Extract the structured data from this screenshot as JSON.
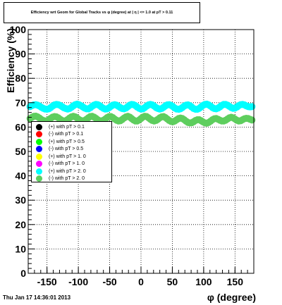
{
  "chart_data": {
    "type": "scatter",
    "title": "Efficiency wrt Geom for Global Tracks vs φ (degree) at | η | <= 1.0 at pT > 0.11",
    "xlabel": "φ (degree)",
    "ylabel": "Efficiency (%)",
    "xlim": [
      -180,
      180
    ],
    "ylim": [
      0,
      100
    ],
    "x_ticks": [
      -150,
      -100,
      -50,
      0,
      50,
      100,
      150
    ],
    "x_tick_labels": [
      "-150",
      "-100",
      "-50",
      "0",
      "50",
      "100",
      "150"
    ],
    "y_ticks": [
      0,
      10,
      20,
      30,
      40,
      50,
      60,
      70,
      80,
      90,
      100
    ],
    "y_tick_labels": [
      "0",
      "10",
      "20",
      "30",
      "40",
      "50",
      "60",
      "70",
      "80",
      "90",
      "100"
    ],
    "grid": true,
    "legend_position": "left-middle",
    "series": [
      {
        "name": "(+) with pT > 0.1",
        "color": "#000000",
        "values": []
      },
      {
        "name": "(-) with pT > 0.1",
        "color": "#ff0000",
        "values": []
      },
      {
        "name": "(+) with pT > 0.5",
        "color": "#00ff00",
        "values": []
      },
      {
        "name": "(-) with pT > 0.5",
        "color": "#0000ff",
        "values": []
      },
      {
        "name": "(+) with pT > 1. 0",
        "color": "#ffff00",
        "values": []
      },
      {
        "name": "(-) with pT > 1. 0",
        "color": "#ff00ff",
        "values": []
      },
      {
        "name": "(+) with pT > 2. 0",
        "color": "#00ffff",
        "x": [
          -177,
          -174,
          -171,
          -168,
          -165,
          -162,
          -159,
          -156,
          -153,
          -150,
          -147,
          -144,
          -141,
          -138,
          -135,
          -132,
          -129,
          -126,
          -123,
          -120,
          -117,
          -114,
          -111,
          -108,
          -105,
          -102,
          -99,
          -96,
          -93,
          -90,
          -87,
          -84,
          -81,
          -78,
          -75,
          -72,
          -69,
          -66,
          -63,
          -60,
          -57,
          -54,
          -51,
          -48,
          -45,
          -42,
          -39,
          -36,
          -33,
          -30,
          -27,
          -24,
          -21,
          -18,
          -15,
          -12,
          -9,
          -6,
          -3,
          0,
          3,
          6,
          9,
          12,
          15,
          18,
          21,
          24,
          27,
          30,
          33,
          36,
          39,
          42,
          45,
          48,
          51,
          54,
          57,
          60,
          63,
          66,
          69,
          72,
          75,
          78,
          81,
          84,
          87,
          90,
          93,
          96,
          99,
          102,
          105,
          108,
          111,
          114,
          117,
          120,
          123,
          126,
          129,
          132,
          135,
          138,
          141,
          144,
          147,
          150,
          153,
          156,
          159,
          162,
          165,
          168,
          171,
          174,
          177
        ],
        "values": [
          68.4,
          68.8,
          69.1,
          69.2,
          69.0,
          68.6,
          68.1,
          67.7,
          67.4,
          67.3,
          67.5,
          68.0,
          68.6,
          69.1,
          69.3,
          69.2,
          68.9,
          68.4,
          67.9,
          67.6,
          67.4,
          67.6,
          68.1,
          68.7,
          69.2,
          69.4,
          69.2,
          68.8,
          68.3,
          67.8,
          67.5,
          67.5,
          67.9,
          68.5,
          69.0,
          69.3,
          69.2,
          68.8,
          68.2,
          67.7,
          67.4,
          67.5,
          67.9,
          68.5,
          69.0,
          69.2,
          69.0,
          68.5,
          68.0,
          67.6,
          67.5,
          67.8,
          68.4,
          69.0,
          69.3,
          69.2,
          68.8,
          68.2,
          67.7,
          67.4,
          67.5,
          68.0,
          68.6,
          69.1,
          69.3,
          69.1,
          68.6,
          68.0,
          67.6,
          67.4,
          67.6,
          68.1,
          68.7,
          69.1,
          69.2,
          68.9,
          68.4,
          67.8,
          67.4,
          67.3,
          67.5,
          68.0,
          68.6,
          69.0,
          69.1,
          68.8,
          68.2,
          67.6,
          67.3,
          67.3,
          67.7,
          68.3,
          68.9,
          69.3,
          69.4,
          69.1,
          68.6,
          68.0,
          67.6,
          67.5,
          67.8,
          68.3,
          68.9,
          69.3,
          69.3,
          69.0,
          68.5,
          68.0,
          67.7,
          67.8,
          68.2,
          68.8,
          69.2,
          69.3,
          69.1,
          68.7,
          68.4,
          68.3,
          68.4
        ]
      },
      {
        "name": "(-) with pT > 2. 0",
        "color": "#5ece5e",
        "x": [
          -177,
          -174,
          -171,
          -168,
          -165,
          -162,
          -159,
          -156,
          -153,
          -150,
          -147,
          -144,
          -141,
          -138,
          -135,
          -132,
          -129,
          -126,
          -123,
          -120,
          -117,
          -114,
          -111,
          -108,
          -105,
          -102,
          -99,
          -96,
          -93,
          -90,
          -87,
          -84,
          -81,
          -78,
          -75,
          -72,
          -69,
          -66,
          -63,
          -60,
          -57,
          -54,
          -51,
          -48,
          -45,
          -42,
          -39,
          -36,
          -33,
          -30,
          -27,
          -24,
          -21,
          -18,
          -15,
          -12,
          -9,
          -6,
          -3,
          0,
          3,
          6,
          9,
          12,
          15,
          18,
          21,
          24,
          27,
          30,
          33,
          36,
          39,
          42,
          45,
          48,
          51,
          54,
          57,
          60,
          63,
          66,
          69,
          72,
          75,
          78,
          81,
          84,
          87,
          90,
          93,
          96,
          99,
          102,
          105,
          108,
          111,
          114,
          117,
          120,
          123,
          126,
          129,
          132,
          135,
          138,
          141,
          144,
          147,
          150,
          153,
          156,
          159,
          162,
          165,
          168,
          171,
          174,
          177
        ],
        "values": [
          63.5,
          64.0,
          64.4,
          64.5,
          64.2,
          63.7,
          63.1,
          62.7,
          62.5,
          62.6,
          63.0,
          63.6,
          64.1,
          64.3,
          64.2,
          63.8,
          63.2,
          62.7,
          62.5,
          62.6,
          63.1,
          63.7,
          64.2,
          64.4,
          64.2,
          63.7,
          63.1,
          62.7,
          62.5,
          62.7,
          63.2,
          63.8,
          64.3,
          64.4,
          64.1,
          63.6,
          63.0,
          62.6,
          62.5,
          62.8,
          63.3,
          63.9,
          64.3,
          64.3,
          63.9,
          63.3,
          62.8,
          62.5,
          62.6,
          63.1,
          63.7,
          64.2,
          64.4,
          64.1,
          63.5,
          62.9,
          62.5,
          62.5,
          62.9,
          63.5,
          64.1,
          64.4,
          64.3,
          63.8,
          63.2,
          62.7,
          62.5,
          62.7,
          63.2,
          63.8,
          64.2,
          64.3,
          63.9,
          63.3,
          62.7,
          62.3,
          62.2,
          62.5,
          63.0,
          63.5,
          63.7,
          63.5,
          63.0,
          62.4,
          61.9,
          61.7,
          61.8,
          62.2,
          62.7,
          63.0,
          63.0,
          62.6,
          62.1,
          61.7,
          61.6,
          61.9,
          62.4,
          63.0,
          63.4,
          63.5,
          63.2,
          62.8,
          62.5,
          62.5,
          62.8,
          63.3,
          63.8,
          64.0,
          63.8,
          63.3,
          62.8,
          62.5,
          62.6,
          63.0,
          63.4,
          63.6,
          63.5,
          63.2,
          62.9
        ]
      }
    ]
  },
  "footer": {
    "timestamp": "Thu Jan 17 14:36:01 2013"
  }
}
